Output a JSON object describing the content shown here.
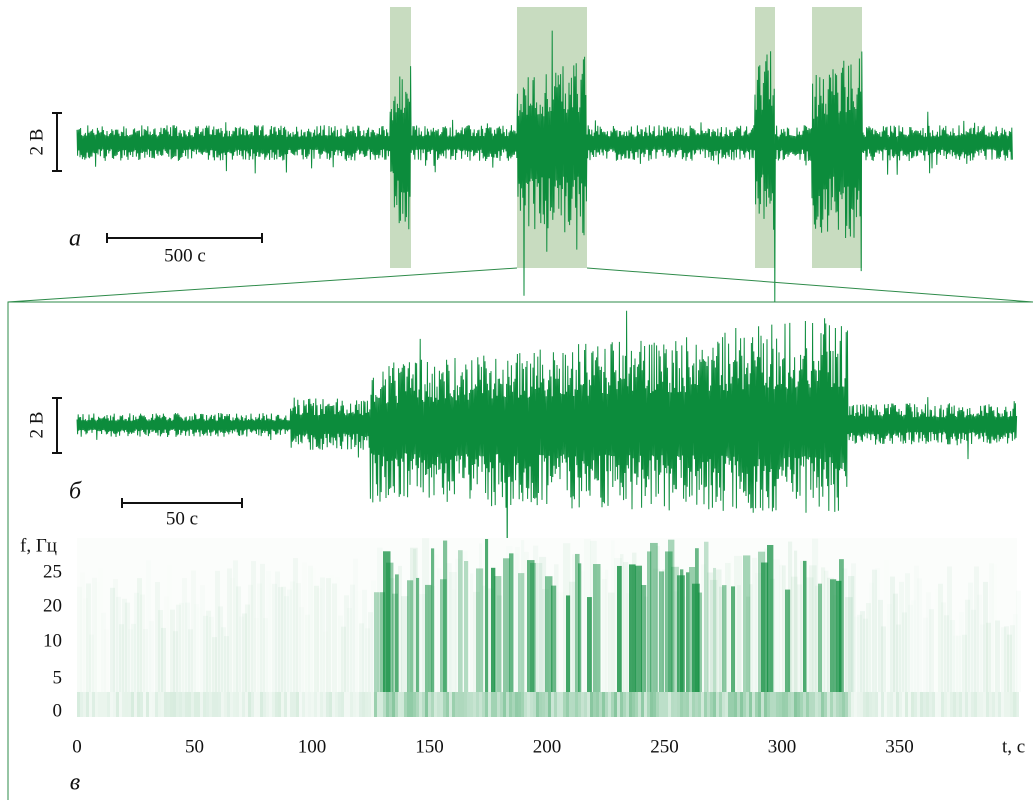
{
  "figure": {
    "panel_a": {
      "label": "а",
      "scale_time": "500 с",
      "scale_voltage": "2 В"
    },
    "panel_b": {
      "label": "б",
      "scale_time": "50 с",
      "scale_voltage": "2 В"
    },
    "panel_c": {
      "label": "в",
      "y_axis_label": "f, Гц",
      "x_axis_label": "t, с",
      "y_ticks": [
        25,
        20,
        10,
        5,
        0
      ],
      "x_ticks": [
        0,
        50,
        100,
        150,
        200,
        250,
        300,
        350
      ]
    }
  }
}
